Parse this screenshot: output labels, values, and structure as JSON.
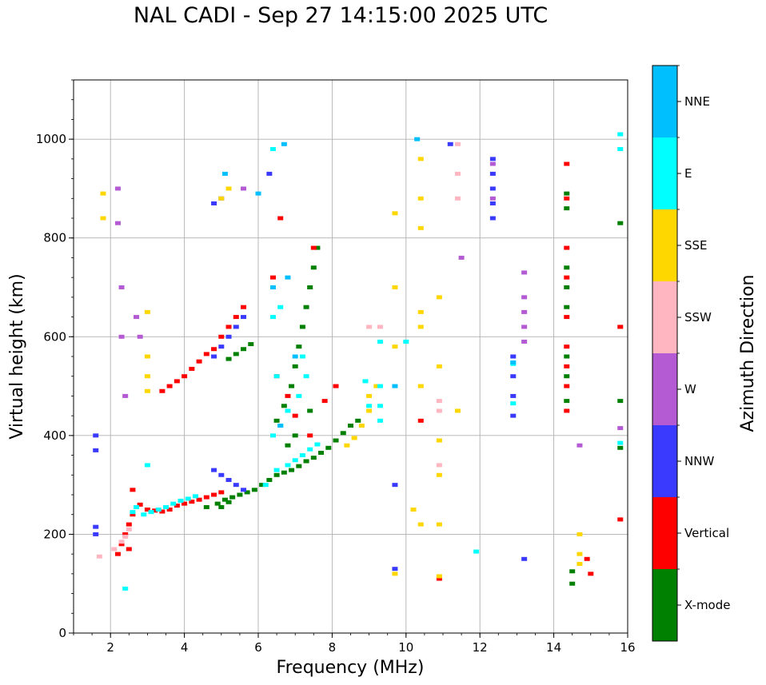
{
  "chart_data": {
    "type": "scatter",
    "title": "NAL CADI - Sep 27 14:15:00 2025 UTC",
    "xlabel": "Frequency (MHz)",
    "ylabel": "Virtual height (km)",
    "xlim": [
      1,
      16
    ],
    "ylim": [
      0,
      1120
    ],
    "xticks": [
      "2",
      "4",
      "6",
      "8",
      "10",
      "12",
      "14",
      "16"
    ],
    "yticks": [
      "0",
      "200",
      "400",
      "600",
      "800",
      "1000"
    ],
    "grid": true,
    "colorbar": {
      "label": "Azimuth Direction",
      "categories": [
        {
          "name": "X-mode",
          "color": "#008000"
        },
        {
          "name": "Vertical",
          "color": "#ff0000"
        },
        {
          "name": "NNW",
          "color": "#3a3aff"
        },
        {
          "name": "W",
          "color": "#b45ad2"
        },
        {
          "name": "SSW",
          "color": "#ffb6c1"
        },
        {
          "name": "SSE",
          "color": "#ffd700"
        },
        {
          "name": "E",
          "color": "#00ffff"
        },
        {
          "name": "NNE",
          "color": "#00bfff"
        }
      ]
    },
    "series": [
      {
        "name": "X-mode",
        "points": [
          [
            4.6,
            255
          ],
          [
            4.9,
            262
          ],
          [
            5.1,
            270
          ],
          [
            5.3,
            275
          ],
          [
            5.5,
            280
          ],
          [
            5.7,
            285
          ],
          [
            5.9,
            290
          ],
          [
            6.1,
            300
          ],
          [
            6.3,
            310
          ],
          [
            6.5,
            320
          ],
          [
            6.7,
            325
          ],
          [
            6.9,
            330
          ],
          [
            7.1,
            338
          ],
          [
            7.3,
            348
          ],
          [
            7.5,
            355
          ],
          [
            7.7,
            365
          ],
          [
            7.9,
            375
          ],
          [
            8.1,
            390
          ],
          [
            8.3,
            405
          ],
          [
            8.5,
            420
          ],
          [
            8.7,
            430
          ],
          [
            5.2,
            555
          ],
          [
            5.4,
            565
          ],
          [
            5.6,
            575
          ],
          [
            5.8,
            585
          ],
          [
            6.5,
            430
          ],
          [
            6.7,
            460
          ],
          [
            6.9,
            500
          ],
          [
            7.0,
            540
          ],
          [
            7.1,
            580
          ],
          [
            7.2,
            620
          ],
          [
            7.3,
            660
          ],
          [
            7.4,
            700
          ],
          [
            7.5,
            740
          ],
          [
            7.6,
            780
          ],
          [
            5.0,
            255
          ],
          [
            5.2,
            265
          ],
          [
            6.8,
            380
          ],
          [
            7.0,
            400
          ],
          [
            7.4,
            450
          ],
          [
            14.35,
            890
          ],
          [
            14.35,
            860
          ],
          [
            14.35,
            740
          ],
          [
            14.35,
            700
          ],
          [
            14.35,
            660
          ],
          [
            14.35,
            560
          ],
          [
            14.35,
            520
          ],
          [
            14.35,
            470
          ],
          [
            14.5,
            100
          ],
          [
            14.5,
            125
          ],
          [
            15.8,
            470
          ],
          [
            15.8,
            375
          ],
          [
            15.8,
            830
          ]
        ]
      },
      {
        "name": "Vertical",
        "points": [
          [
            2.2,
            160
          ],
          [
            2.3,
            180
          ],
          [
            2.4,
            200
          ],
          [
            2.5,
            220
          ],
          [
            2.6,
            240
          ],
          [
            2.8,
            260
          ],
          [
            3.0,
            250
          ],
          [
            3.2,
            248
          ],
          [
            3.4,
            246
          ],
          [
            3.6,
            250
          ],
          [
            3.8,
            258
          ],
          [
            4.0,
            262
          ],
          [
            4.2,
            266
          ],
          [
            4.4,
            270
          ],
          [
            4.6,
            275
          ],
          [
            4.8,
            280
          ],
          [
            5.0,
            285
          ],
          [
            3.4,
            490
          ],
          [
            3.6,
            500
          ],
          [
            3.8,
            510
          ],
          [
            4.0,
            520
          ],
          [
            4.2,
            535
          ],
          [
            4.4,
            550
          ],
          [
            4.6,
            565
          ],
          [
            4.8,
            575
          ],
          [
            5.0,
            600
          ],
          [
            5.2,
            620
          ],
          [
            5.4,
            640
          ],
          [
            5.6,
            660
          ],
          [
            6.5,
            520
          ],
          [
            6.8,
            480
          ],
          [
            7.0,
            440
          ],
          [
            7.4,
            400
          ],
          [
            7.8,
            470
          ],
          [
            8.1,
            500
          ],
          [
            6.6,
            840
          ],
          [
            6.4,
            720
          ],
          [
            7.5,
            780
          ],
          [
            14.35,
            950
          ],
          [
            14.35,
            880
          ],
          [
            14.35,
            780
          ],
          [
            14.35,
            720
          ],
          [
            14.35,
            640
          ],
          [
            14.35,
            580
          ],
          [
            14.35,
            540
          ],
          [
            14.35,
            500
          ],
          [
            14.35,
            450
          ],
          [
            14.9,
            150
          ],
          [
            15.0,
            120
          ],
          [
            15.8,
            620
          ],
          [
            15.8,
            230
          ],
          [
            2.5,
            170
          ],
          [
            2.6,
            290
          ],
          [
            10.4,
            430
          ],
          [
            10.9,
            110
          ]
        ]
      },
      {
        "name": "NNW",
        "points": [
          [
            1.6,
            400
          ],
          [
            1.6,
            370
          ],
          [
            1.6,
            215
          ],
          [
            1.6,
            200
          ],
          [
            4.8,
            330
          ],
          [
            5.0,
            320
          ],
          [
            5.2,
            310
          ],
          [
            5.4,
            300
          ],
          [
            5.6,
            290
          ],
          [
            4.8,
            560
          ],
          [
            5.0,
            580
          ],
          [
            5.2,
            600
          ],
          [
            5.4,
            620
          ],
          [
            5.6,
            640
          ],
          [
            4.8,
            870
          ],
          [
            5.0,
            880
          ],
          [
            12.35,
            960
          ],
          [
            12.35,
            930
          ],
          [
            12.35,
            900
          ],
          [
            12.35,
            870
          ],
          [
            12.35,
            840
          ],
          [
            12.9,
            560
          ],
          [
            12.9,
            520
          ],
          [
            12.9,
            480
          ],
          [
            12.9,
            440
          ],
          [
            13.2,
            150
          ],
          [
            9.7,
            300
          ],
          [
            9.7,
            130
          ],
          [
            11.2,
            990
          ],
          [
            6.3,
            930
          ]
        ]
      },
      {
        "name": "W",
        "points": [
          [
            2.2,
            900
          ],
          [
            2.2,
            830
          ],
          [
            2.3,
            700
          ],
          [
            2.3,
            600
          ],
          [
            2.4,
            480
          ],
          [
            2.7,
            640
          ],
          [
            2.8,
            600
          ],
          [
            13.2,
            730
          ],
          [
            13.2,
            680
          ],
          [
            13.2,
            650
          ],
          [
            13.2,
            620
          ],
          [
            13.2,
            590
          ],
          [
            12.35,
            950
          ],
          [
            12.35,
            880
          ],
          [
            14.7,
            380
          ],
          [
            15.8,
            415
          ],
          [
            11.5,
            760
          ],
          [
            5.6,
            900
          ]
        ]
      },
      {
        "name": "SSW",
        "points": [
          [
            1.7,
            155
          ],
          [
            2.1,
            170
          ],
          [
            2.3,
            185
          ],
          [
            2.4,
            195
          ],
          [
            2.5,
            210
          ],
          [
            10.9,
            470
          ],
          [
            10.9,
            450
          ],
          [
            10.9,
            340
          ],
          [
            9.3,
            620
          ],
          [
            9.0,
            620
          ],
          [
            11.4,
            990
          ],
          [
            11.4,
            930
          ],
          [
            11.4,
            880
          ]
        ]
      },
      {
        "name": "SSE",
        "points": [
          [
            3.0,
            560
          ],
          [
            3.0,
            520
          ],
          [
            3.0,
            490
          ],
          [
            3.0,
            650
          ],
          [
            5.0,
            880
          ],
          [
            5.2,
            900
          ],
          [
            8.4,
            380
          ],
          [
            8.6,
            395
          ],
          [
            8.8,
            420
          ],
          [
            9.0,
            450
          ],
          [
            9.0,
            480
          ],
          [
            9.2,
            500
          ],
          [
            10.9,
            540
          ],
          [
            10.9,
            390
          ],
          [
            10.9,
            320
          ],
          [
            10.9,
            220
          ],
          [
            10.9,
            115
          ],
          [
            10.9,
            680
          ],
          [
            11.4,
            450
          ],
          [
            9.7,
            850
          ],
          [
            9.7,
            700
          ],
          [
            9.7,
            580
          ],
          [
            9.7,
            120
          ],
          [
            10.4,
            960
          ],
          [
            10.4,
            880
          ],
          [
            10.4,
            820
          ],
          [
            10.4,
            650
          ],
          [
            10.4,
            620
          ],
          [
            10.4,
            500
          ],
          [
            10.4,
            220
          ],
          [
            10.2,
            250
          ],
          [
            14.7,
            160
          ],
          [
            14.7,
            140
          ],
          [
            14.7,
            200
          ],
          [
            1.8,
            890
          ],
          [
            1.8,
            840
          ]
        ]
      },
      {
        "name": "E",
        "points": [
          [
            2.6,
            245
          ],
          [
            2.7,
            255
          ],
          [
            2.9,
            240
          ],
          [
            3.1,
            245
          ],
          [
            3.3,
            250
          ],
          [
            3.5,
            255
          ],
          [
            3.7,
            262
          ],
          [
            3.9,
            268
          ],
          [
            4.1,
            272
          ],
          [
            4.3,
            277
          ],
          [
            6.2,
            300
          ],
          [
            6.5,
            330
          ],
          [
            6.8,
            340
          ],
          [
            7.0,
            350
          ],
          [
            7.2,
            360
          ],
          [
            7.4,
            372
          ],
          [
            7.6,
            382
          ],
          [
            6.4,
            400
          ],
          [
            6.6,
            420
          ],
          [
            6.8,
            450
          ],
          [
            7.1,
            480
          ],
          [
            7.3,
            520
          ],
          [
            6.5,
            520
          ],
          [
            7.2,
            560
          ],
          [
            6.4,
            640
          ],
          [
            6.6,
            660
          ],
          [
            9.3,
            500
          ],
          [
            9.3,
            460
          ],
          [
            9.3,
            430
          ],
          [
            9.0,
            460
          ],
          [
            8.9,
            510
          ],
          [
            9.3,
            590
          ],
          [
            15.8,
            1010
          ],
          [
            15.8,
            980
          ],
          [
            15.8,
            385
          ],
          [
            12.9,
            545
          ],
          [
            12.9,
            465
          ],
          [
            10.0,
            590
          ],
          [
            11.9,
            165
          ],
          [
            2.4,
            90
          ],
          [
            6.4,
            980
          ],
          [
            3.0,
            340
          ]
        ]
      },
      {
        "name": "NNE",
        "points": [
          [
            6.7,
            990
          ],
          [
            6.4,
            700
          ],
          [
            6.8,
            720
          ],
          [
            6.6,
            420
          ],
          [
            7.0,
            560
          ],
          [
            12.9,
            548
          ],
          [
            10.3,
            1000
          ],
          [
            9.7,
            500
          ],
          [
            6.0,
            890
          ],
          [
            5.1,
            930
          ]
        ]
      }
    ]
  }
}
